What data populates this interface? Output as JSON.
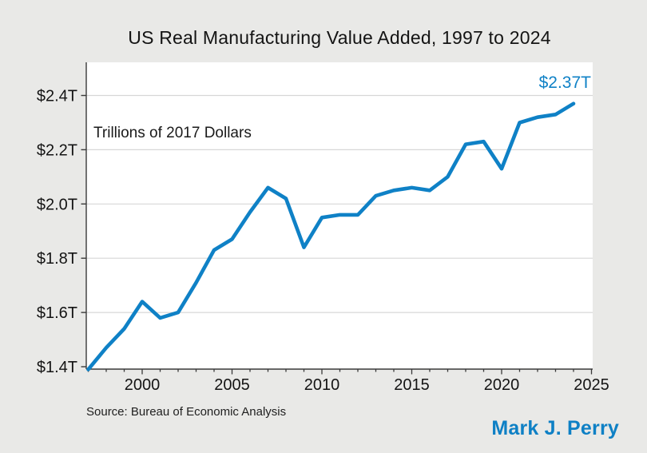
{
  "title": "US Real Manufacturing Value Added, 1997 to 2024",
  "units_note": "Trillions of 2017 Dollars",
  "endpoint_label": "$2.37T",
  "source": "Source: Bureau of Economic Analysis",
  "credit": "Mark J. Perry",
  "colors": {
    "background": "#e9e9e7",
    "plot_background": "#ffffff",
    "line": "#0f81c6",
    "accent_text": "#0e80c5",
    "grid": "#d7d7d7",
    "axis": "#3a3a3a",
    "text": "#141414"
  },
  "chart_data": {
    "type": "line",
    "title": "US Real Manufacturing Value Added, 1997 to 2024",
    "ylabel": "Trillions of 2017 Dollars",
    "xlabel": "",
    "x": [
      1997,
      1998,
      1999,
      2000,
      2001,
      2002,
      2003,
      2004,
      2005,
      2006,
      2007,
      2008,
      2009,
      2010,
      2011,
      2012,
      2013,
      2014,
      2015,
      2016,
      2017,
      2018,
      2019,
      2020,
      2021,
      2022,
      2023,
      2024
    ],
    "values": [
      1.39,
      1.47,
      1.54,
      1.64,
      1.58,
      1.6,
      1.71,
      1.83,
      1.87,
      1.97,
      2.06,
      2.02,
      1.84,
      1.95,
      1.96,
      1.96,
      2.03,
      2.05,
      2.06,
      2.05,
      2.1,
      2.22,
      2.23,
      2.13,
      2.3,
      2.32,
      2.33,
      2.37
    ],
    "last_point_annotation": "$2.37T",
    "xlim": [
      1997,
      2025
    ],
    "ylim": [
      1.4,
      2.4
    ],
    "y_ticks": [
      {
        "value": 1.4,
        "label": "$1.4T"
      },
      {
        "value": 1.6,
        "label": "$1.6T"
      },
      {
        "value": 1.8,
        "label": "$1.8T"
      },
      {
        "value": 2.0,
        "label": "$2.0T"
      },
      {
        "value": 2.2,
        "label": "$2.2T"
      },
      {
        "value": 2.4,
        "label": "$2.4T"
      }
    ],
    "x_major_ticks": [
      {
        "value": 2000,
        "label": "2000"
      },
      {
        "value": 2005,
        "label": "2005"
      },
      {
        "value": 2010,
        "label": "2010"
      },
      {
        "value": 2015,
        "label": "2015"
      },
      {
        "value": 2020,
        "label": "2020"
      },
      {
        "value": 2025,
        "label": "2025"
      }
    ],
    "x_minor_tick_step": 1,
    "grid": "horizontal",
    "legend": "none"
  }
}
